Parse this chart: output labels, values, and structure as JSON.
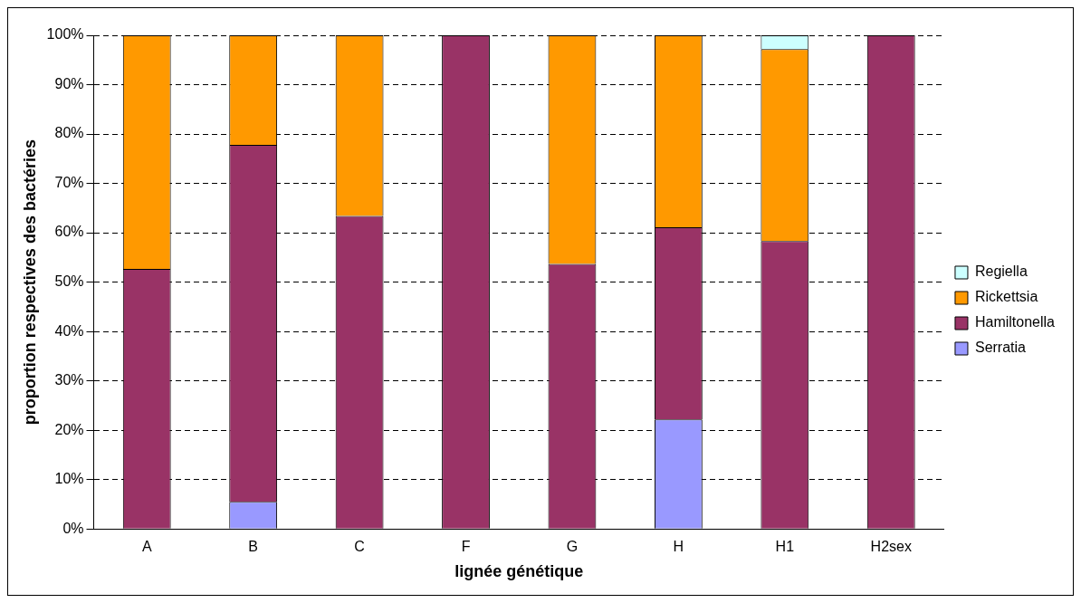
{
  "chart_data": {
    "type": "bar",
    "stacked": true,
    "xlabel": "lignée génétique",
    "ylabel": "proportion respectives des bactéries",
    "categories": [
      "A",
      "B",
      "C",
      "F",
      "G",
      "H",
      "H1",
      "H2sex"
    ],
    "series": [
      {
        "name": "Serratia",
        "color": "#9999ff",
        "values": [
          0,
          5.5,
          0,
          0,
          0,
          22.2,
          0,
          0
        ]
      },
      {
        "name": "Hamiltonella",
        "color": "#993366",
        "values": [
          52.7,
          72.3,
          63.4,
          100,
          53.7,
          38.9,
          58.3,
          100
        ]
      },
      {
        "name": "Rickettsia",
        "color": "#ff9900",
        "values": [
          47.3,
          22.2,
          36.6,
          0,
          46.3,
          38.9,
          38.9,
          0
        ]
      },
      {
        "name": "Regiella",
        "color": "#ccffff",
        "values": [
          0,
          0,
          0,
          0,
          0,
          0,
          2.8,
          0
        ]
      }
    ],
    "ylim": [
      0,
      100
    ],
    "yticks": [
      {
        "value": 0,
        "label": "0%"
      },
      {
        "value": 10,
        "label": "10%"
      },
      {
        "value": 20,
        "label": "20%"
      },
      {
        "value": 30,
        "label": "30%"
      },
      {
        "value": 40,
        "label": "40%"
      },
      {
        "value": 50,
        "label": "50%"
      },
      {
        "value": 60,
        "label": "60%"
      },
      {
        "value": 70,
        "label": "70%"
      },
      {
        "value": 80,
        "label": "80%"
      },
      {
        "value": 90,
        "label": "90%"
      },
      {
        "value": 100,
        "label": "100%"
      }
    ],
    "grid": "y",
    "legend": "right"
  }
}
